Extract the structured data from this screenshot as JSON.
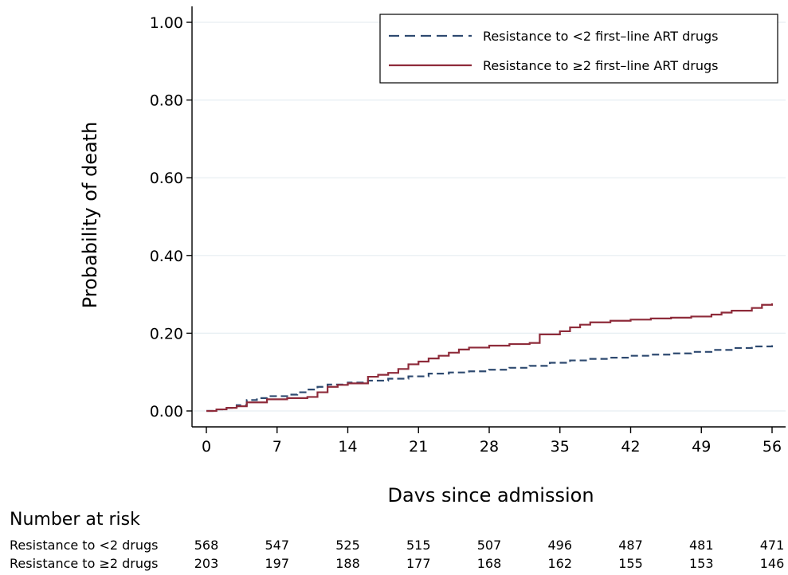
{
  "chart_data": {
    "type": "line",
    "xlabel": "Days since admission",
    "ylabel": "Probability of death",
    "xlim": [
      0,
      56
    ],
    "ylim": [
      0,
      1
    ],
    "x_ticks": [
      0,
      7,
      14,
      21,
      28,
      35,
      42,
      49,
      56
    ],
    "x_tick_labels": [
      "0",
      "7",
      "14",
      "21",
      "28",
      "35",
      "42",
      "49",
      "56"
    ],
    "y_ticks": [
      0,
      0.2,
      0.4,
      0.6,
      0.8,
      1.0
    ],
    "y_tick_labels": [
      "0.00",
      "0.20",
      "0.40",
      "0.60",
      "0.80",
      "1.00"
    ],
    "grid": "horizontal",
    "legend_position": "top-right",
    "step": true,
    "series": [
      {
        "name": "Resistance to <2 first–line ART drugs",
        "color": "#2e4a70",
        "dash": "dashed",
        "x": [
          0,
          1,
          2,
          3,
          4,
          5,
          6,
          8,
          9,
          10,
          11,
          12,
          14,
          16,
          18,
          20,
          22,
          24,
          26,
          28,
          30,
          32,
          34,
          36,
          38,
          40,
          42,
          44,
          46,
          48,
          50,
          52,
          54,
          56
        ],
        "y": [
          0,
          0.004,
          0.008,
          0.015,
          0.028,
          0.033,
          0.038,
          0.042,
          0.048,
          0.055,
          0.062,
          0.068,
          0.073,
          0.078,
          0.083,
          0.089,
          0.096,
          0.099,
          0.102,
          0.106,
          0.111,
          0.116,
          0.124,
          0.13,
          0.134,
          0.137,
          0.142,
          0.145,
          0.148,
          0.152,
          0.157,
          0.162,
          0.166,
          0.169
        ]
      },
      {
        "name": "Resistance to ≥2 first–line ART drugs",
        "color": "#8e2b3a",
        "dash": "solid",
        "x": [
          0,
          1,
          2,
          3,
          4,
          6,
          8,
          9,
          10,
          11,
          12,
          13,
          14,
          16,
          17,
          18,
          19,
          20,
          21,
          22,
          23,
          24,
          25,
          26,
          28,
          30,
          32,
          33,
          35,
          36,
          37,
          38,
          40,
          42,
          44,
          46,
          48,
          50,
          51,
          52,
          54,
          55,
          56
        ],
        "y": [
          0,
          0.004,
          0.008,
          0.012,
          0.022,
          0.03,
          0.033,
          0.033,
          0.036,
          0.048,
          0.062,
          0.067,
          0.071,
          0.088,
          0.093,
          0.098,
          0.108,
          0.12,
          0.127,
          0.135,
          0.142,
          0.15,
          0.158,
          0.163,
          0.168,
          0.172,
          0.175,
          0.197,
          0.205,
          0.215,
          0.222,
          0.228,
          0.232,
          0.235,
          0.238,
          0.24,
          0.243,
          0.248,
          0.253,
          0.258,
          0.265,
          0.273,
          0.277
        ]
      }
    ]
  },
  "risk_table": {
    "title": "Number at risk",
    "rows": [
      {
        "label": "Resistance to <2 drugs",
        "values": [
          "568",
          "547",
          "525",
          "515",
          "507",
          "496",
          "487",
          "481",
          "471"
        ]
      },
      {
        "label": "Resistance to ≥2 drugs",
        "values": [
          "203",
          "197",
          "188",
          "177",
          "168",
          "162",
          "155",
          "153",
          "146"
        ]
      }
    ]
  }
}
